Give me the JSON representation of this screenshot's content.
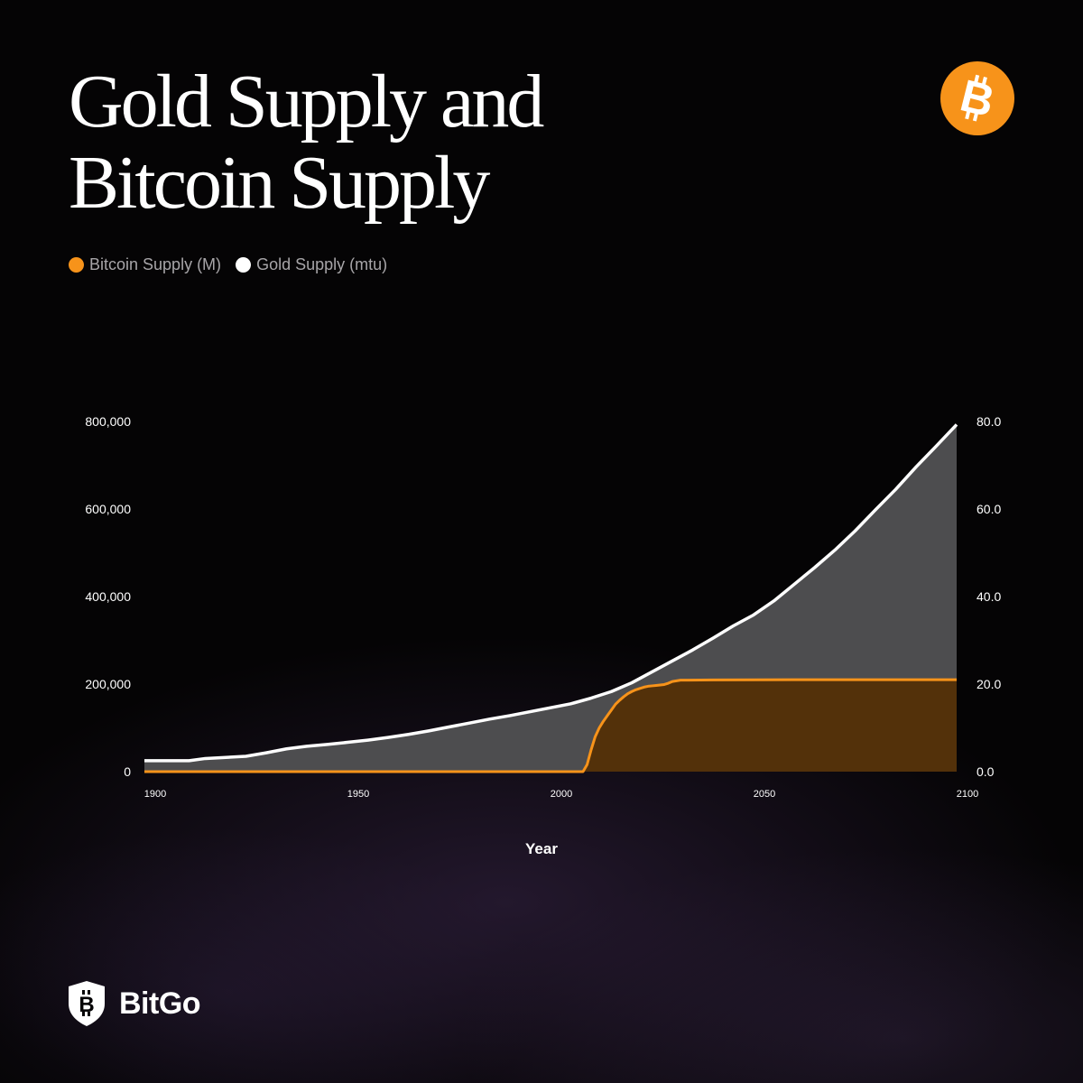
{
  "title": "Gold Supply and Bitcoin Supply",
  "brand": {
    "name": "BitGo",
    "logo_icon": "bitgo-shield-icon"
  },
  "header_icon": "bitcoin-logo-icon",
  "colors": {
    "background": "#050405",
    "bitcoin": "#f7931a",
    "bitcoin_fill": "#53310a",
    "gold": "#ffffff",
    "gold_fill": "#4d4d4f"
  },
  "legend": [
    {
      "label": "Bitcoin Supply (M)",
      "color": "#f7931a"
    },
    {
      "label": "Gold Supply (mtu)",
      "color": "#ffffff"
    }
  ],
  "chart_data": {
    "type": "area",
    "xlabel": "Year",
    "x_ticks": [
      "1900",
      "1950",
      "2000",
      "2050",
      "2100"
    ],
    "xlim": [
      1900,
      2100
    ],
    "y_left_ticks": [
      "0",
      "200,000",
      "400,000",
      "600,000",
      "800,000"
    ],
    "y_left_lim": [
      0,
      800000
    ],
    "y_right_ticks": [
      "0.0",
      "20.0",
      "40.0",
      "60.0",
      "80.0"
    ],
    "y_right_lim": [
      0,
      80
    ],
    "grid": false,
    "legend_position": "top-left",
    "series": [
      {
        "name": "Gold Supply (mtu)",
        "axis": "left",
        "x": [
          1900,
          1905,
          1911,
          1915,
          1925,
          1930,
          1935,
          1940,
          1945,
          1950,
          1955,
          1960,
          1965,
          1970,
          1975,
          1980,
          1985,
          1990,
          1995,
          2000,
          2005,
          2010,
          2015,
          2020,
          2025,
          2030,
          2035,
          2040,
          2045,
          2050,
          2055,
          2060,
          2065,
          2070,
          2075,
          2080,
          2085,
          2090,
          2095,
          2100
        ],
        "values": [
          25000,
          25000,
          25000,
          30000,
          35000,
          43000,
          52000,
          58000,
          62000,
          67000,
          72000,
          78000,
          85000,
          93000,
          102000,
          111000,
          120000,
          128000,
          137000,
          146000,
          155000,
          168000,
          183000,
          203000,
          228000,
          253000,
          278000,
          305000,
          333000,
          358000,
          390000,
          428000,
          466000,
          506000,
          550000,
          598000,
          645000,
          696000,
          744000,
          793000
        ]
      },
      {
        "name": "Bitcoin Supply (M)",
        "axis": "right",
        "x": [
          1900,
          2008,
          2009,
          2010,
          2011,
          2012,
          2013,
          2014,
          2015,
          2016,
          2017,
          2018,
          2019,
          2020,
          2021,
          2022,
          2023,
          2024,
          2025,
          2026,
          2027,
          2028,
          2029,
          2030,
          2032,
          2040,
          2060,
          2080,
          2100
        ],
        "values": [
          0,
          0,
          1.6,
          5.0,
          8.0,
          10.0,
          11.5,
          12.8,
          14.1,
          15.4,
          16.3,
          17.1,
          17.8,
          18.3,
          18.7,
          19.0,
          19.3,
          19.5,
          19.6,
          19.7,
          19.8,
          19.9,
          20.2,
          20.6,
          20.9,
          20.95,
          21.0,
          21.0,
          21.0
        ]
      }
    ]
  }
}
